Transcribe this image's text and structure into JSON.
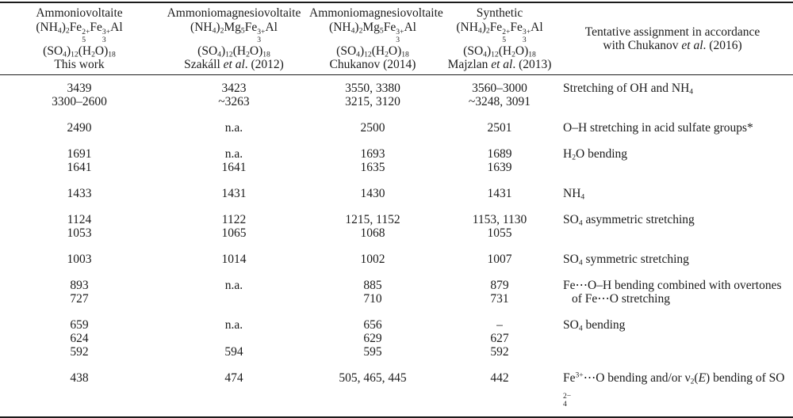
{
  "table": {
    "columns": [
      {
        "lines": [
          "Ammoniovoltaite",
          "(NH_{4})_{2}Fe~{2+|5}Fe~{3+|3}Al",
          "(SO_{4})_{12}(H_{2}O)_{18}",
          "This work"
        ]
      },
      {
        "lines": [
          "Ammoniomagnesiovoltaite",
          "(NH_{4})_{2}Mg_{5}Fe~{3+|3}Al",
          "(SO_{4})_{12}(H_{2}O)_{18}",
          "Szakáll *et al*. (2012)"
        ]
      },
      {
        "lines": [
          "Ammoniomagnesiovoltaite",
          "(NH_{4})_{2}Mg_{5}Fe~{3+|3}Al",
          "(SO_{4})_{12}(H_{2}O)_{18}",
          "Chukanov (2014)"
        ]
      },
      {
        "lines": [
          "Synthetic",
          "(NH_{4})_{2}Fe~{2+|5}Fe~{3+|3}Al",
          "(SO_{4})_{12}(H_{2}O)_{18}",
          "Majzlan *et al*. (2013)"
        ]
      },
      {
        "lines": [
          "Tentative assignment in accordance",
          "with Chukanov *et al*. (2016)"
        ]
      }
    ],
    "rows": [
      {
        "cells": [
          "3439",
          "3423",
          "3550, 3380",
          "3560–3000",
          "Stretching of OH and NH_{4}"
        ]
      },
      {
        "cells": [
          "3300–2600",
          "~3263",
          "3215, 3120",
          "~3248, 3091",
          ""
        ]
      },
      {
        "cells": [
          "2490",
          "n.a.",
          "2500",
          "2501",
          "O–H stretching in acid sulfate groups*"
        ],
        "gap": true
      },
      {
        "cells": [
          "1691",
          "n.a.",
          "1693",
          "1689",
          "H_{2}O bending"
        ],
        "gap": true
      },
      {
        "cells": [
          "1641",
          "1641",
          "1635",
          "1639",
          ""
        ]
      },
      {
        "cells": [
          "1433",
          "1431",
          "1430",
          "1431",
          "NH_{4}"
        ],
        "gap": true
      },
      {
        "cells": [
          "1124",
          "1122",
          "1215, 1152",
          "1153, 1130",
          "SO_{4} asymmetric stretching"
        ],
        "gap": true
      },
      {
        "cells": [
          "1053",
          "1065",
          "1068",
          "1055",
          ""
        ]
      },
      {
        "cells": [
          "1003",
          "1014",
          "1002",
          "1007",
          "SO_{4} symmetric stretching"
        ],
        "gap": true
      },
      {
        "cells": [
          "893",
          "n.a.",
          "885",
          "879",
          "Fe⋯O–H bending combined with overtones"
        ],
        "gap": true
      },
      {
        "cells": [
          "727",
          "",
          "710",
          "731",
          "of Fe⋯O stretching"
        ],
        "indent": true
      },
      {
        "cells": [
          "659",
          "n.a.",
          "656",
          "–",
          "SO_{4} bending"
        ],
        "gap": true
      },
      {
        "cells": [
          "624",
          "",
          "629",
          "627",
          ""
        ]
      },
      {
        "cells": [
          "592",
          "594",
          "595",
          "592",
          ""
        ]
      },
      {
        "cells": [
          "438",
          "474",
          "505, 465, 445",
          "442",
          "Fe^{3+}⋯O bending and/or ν_{2}(*E*) bending of SO~{2−|4}"
        ],
        "gap": true
      }
    ]
  }
}
